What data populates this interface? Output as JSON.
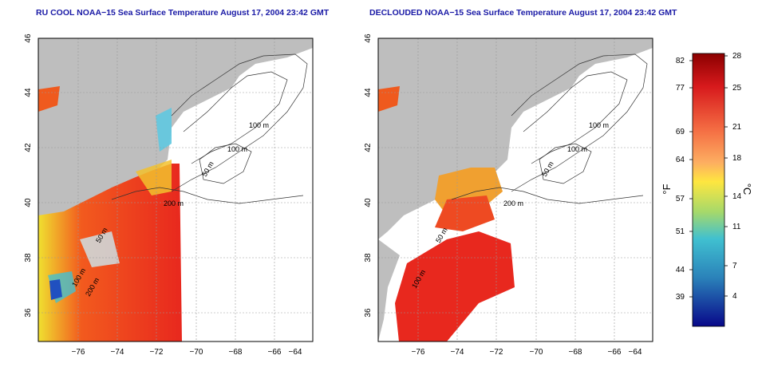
{
  "maps": [
    {
      "title": "RU COOL NOAA−15 Sea Surface Temperature August 17, 2004 23:42 GMT",
      "x_ticks": [
        "−76",
        "−74",
        "−72",
        "−70",
        "−68",
        "−66",
        "−64"
      ],
      "y_ticks": [
        "46",
        "44",
        "42",
        "40",
        "38",
        "36"
      ],
      "contour_labels": [
        "100 m",
        "100 m",
        "50 m",
        "200 m",
        "50 m",
        "100 m",
        "200 m"
      ]
    },
    {
      "title": "DECLOUDED NOAA−15 Sea Surface Temperature August 17, 2004 23:42 GMT",
      "x_ticks": [
        "−76",
        "−74",
        "−72",
        "−70",
        "−68",
        "−66",
        "−64"
      ],
      "y_ticks": [
        "46",
        "44",
        "42",
        "40",
        "38",
        "36"
      ],
      "contour_labels": [
        "100 m",
        "100 m",
        "50 m",
        "200 m",
        "50 m",
        "100 m"
      ]
    }
  ],
  "colorbar": {
    "f_label": "°F",
    "c_label": "°C",
    "f_ticks": [
      "82",
      "77",
      "69",
      "64",
      "57",
      "51",
      "44",
      "39"
    ],
    "c_ticks": [
      "28",
      "25",
      "21",
      "18",
      "14",
      "11",
      "7",
      "4"
    ]
  },
  "colors": {
    "land": "#bebebe",
    "ocean": "#ffffff",
    "title": "#1a1aa6",
    "sst_warm": "#e8281e",
    "sst_mid": "#f5a623",
    "sst_cool": "#2fb5d8"
  }
}
